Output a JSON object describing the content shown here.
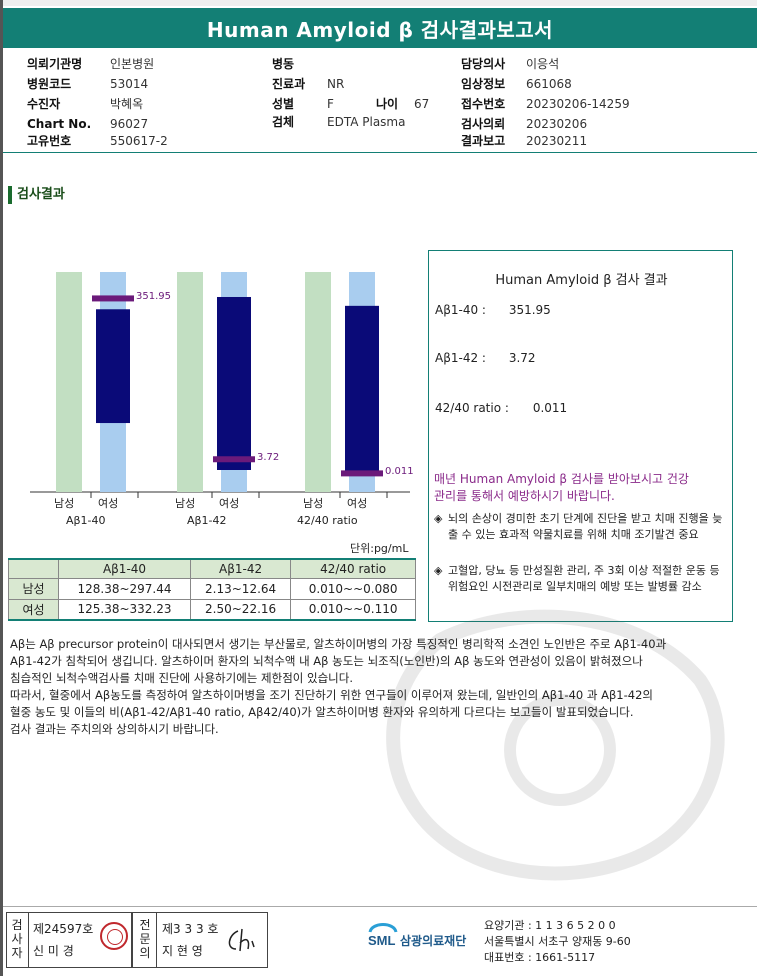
{
  "title": "Human Amyloid β 검사결과보고서",
  "patient": {
    "col1": [
      {
        "k": "의뢰기관명",
        "v": "인본병원"
      },
      {
        "k": "병원코드",
        "v": "53014"
      },
      {
        "k": "수진자",
        "v": "박혜옥"
      },
      {
        "k": "Chart No.",
        "v": "96027"
      },
      {
        "k": "고유번호",
        "v": "550617-2"
      }
    ],
    "col2": [
      {
        "k": "병동",
        "v": ""
      },
      {
        "k": "진료과",
        "v": "NR"
      },
      {
        "k": "성별",
        "v": "F"
      },
      {
        "k": "검체",
        "v": "EDTA Plasma"
      }
    ],
    "age_label": "나이",
    "age": "67",
    "col3": [
      {
        "k": "담당의사",
        "v": "이응석"
      },
      {
        "k": "임상정보",
        "v": "661068"
      },
      {
        "k": "접수번호",
        "v": "20230206-14259"
      },
      {
        "k": "검사의뢰",
        "v": "20230206"
      },
      {
        "k": "결과보고",
        "v": "20230211"
      }
    ]
  },
  "section_title": "검사결과",
  "chart_data": {
    "type": "bar",
    "unit": "단위:pg/mL",
    "groups": [
      {
        "name": "Aβ1-40",
        "value": 351.95,
        "value_label": "351.95",
        "male_label": "남성",
        "female_label": "여성",
        "female_range": [
          125.38,
          332.23
        ],
        "male_range": [
          128.38,
          297.44
        ]
      },
      {
        "name": "Aβ1-42",
        "value": 3.72,
        "value_label": "3.72",
        "male_label": "남성",
        "female_label": "여성",
        "female_range": [
          2.5,
          22.16
        ],
        "male_range": [
          2.13,
          12.64
        ]
      },
      {
        "name": "42/40 ratio",
        "value": 0.011,
        "value_label": "0.011",
        "male_label": "남성",
        "female_label": "여성",
        "female_range": [
          0.01,
          0.11
        ],
        "male_range": [
          0.01,
          0.08
        ]
      }
    ],
    "colors": {
      "male_bar": "#c2dfc2",
      "female_bar": "#a9cdef",
      "range_bar": "#0a0a78",
      "marker": "#6b1a7a"
    }
  },
  "ref_table": {
    "headers": [
      "",
      "Aβ1-40",
      "Aβ1-42",
      "42/40 ratio"
    ],
    "rows": [
      {
        "label": "남성",
        "cells": [
          "128.38~297.44",
          "2.13~12.64",
          "0.010~~0.080"
        ]
      },
      {
        "label": "여성",
        "cells": [
          "125.38~332.23",
          "2.50~22.16",
          "0.010~~0.110"
        ]
      }
    ]
  },
  "result_box": {
    "title": "Human Amyloid β 검사 결과",
    "lines": [
      {
        "label": "Aβ1-40 :",
        "value": "351.95"
      },
      {
        "label": "Aβ1-42 :",
        "value": "3.72"
      },
      {
        "label": "42/40 ratio :",
        "value": "0.011"
      }
    ],
    "note_line1": "매년 Human Amyloid β 검사를 받아보시고 건강",
    "note_line2": "관리를 통해서 예방하시기 바랍니다.",
    "bullets": [
      "뇌의 손상이 경미한 초기 단계에 진단을 받고 치매 진행을 늦출 수 있는 효과적 약물치료를 위해 치매 조기발견 중요",
      "고혈압, 당뇨 등 만성질환 관리, 주 3회 이상 적절한 운동 등 위험요인 시전관리로 일부치매의 예방 또는 발병률 감소"
    ]
  },
  "description": [
    "Aβ는 Aβ precursor protein이 대사되면서 생기는 부산물로, 알츠하이머병의 가장 특징적인 병리학적 소견인 노인반은 주로 Aβ1-40과",
    "Aβ1-42가 침착되어 생깁니다. 알츠하이머 환자의 뇌척수액 내 Aβ 농도는 뇌조직(노인반)의 Aβ 농도와 연관성이 있음이 밝혀졌으나",
    "침습적인 뇌척수액검사를 치매 진단에 사용하기에는 제한점이 있습니다.",
    "따라서, 혈중에서 Aβ농도를 측정하여 알츠하이머병을 조기 진단하기 위한 연구들이 이루어져 왔는데, 일반인의 Aβ1-40 과 Aβ1-42의",
    "혈중 농도 및 이들의 비(Aβ1-42/Aβ1-40 ratio, Aβ42/40)가 알츠하이머병 환자와 유의하게 다르다는 보고들이 발표되었습니다.",
    "검사 결과는 주치의와 상의하시기 바랍니다."
  ],
  "footer": {
    "examiner_vertical": [
      "검",
      "사",
      "자"
    ],
    "examiner_no": "제24597호",
    "examiner_name": "신 미 경",
    "doctor_vertical": [
      "전",
      "문",
      "의"
    ],
    "doctor_no": "제3 3 3 호",
    "doctor_name": "지 현 영",
    "logo_text": "SML",
    "org_name": "삼광의료재단",
    "org_lines": [
      "요양기관 : 1 1 3 6 5 2 0 0",
      "서울특별시 서초구 양재동 9-60",
      "대표번호 : 1661-5117"
    ]
  }
}
